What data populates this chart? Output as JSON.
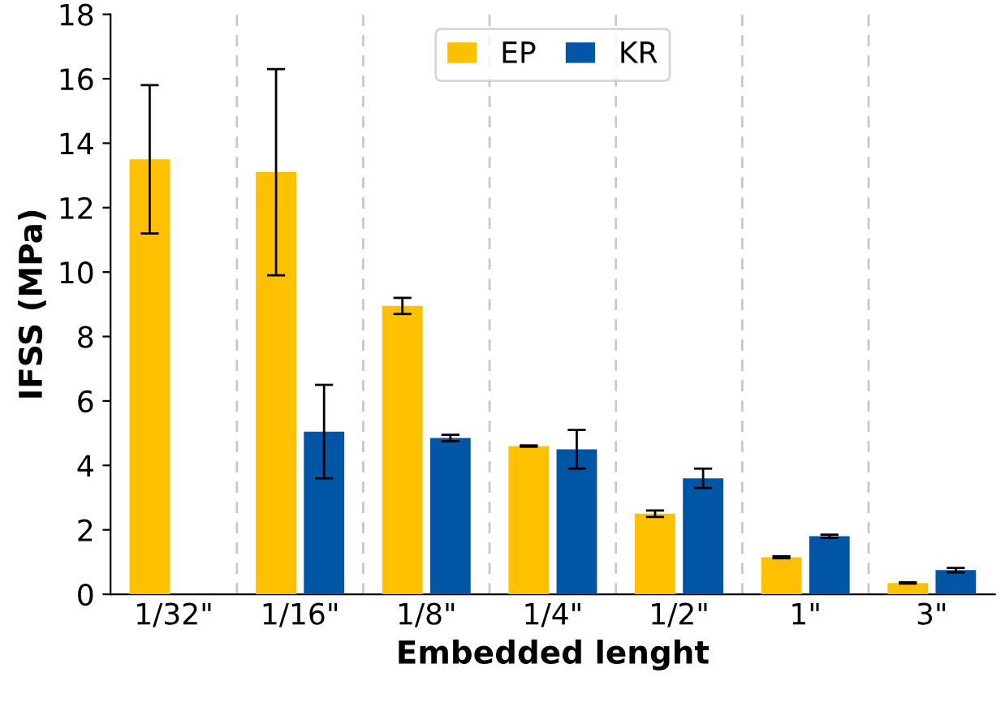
{
  "chart_data": {
    "type": "bar",
    "xlabel": "Embedded lenght",
    "ylabel": "IFSS (MPa)",
    "categories": [
      "1/32\"",
      "1/16\"",
      "1/8\"",
      "1/4\"",
      "1/2\"",
      "1\"",
      "3\""
    ],
    "series": [
      {
        "name": "EP",
        "color": "#ffc000",
        "values": [
          13.5,
          13.1,
          8.95,
          4.6,
          2.5,
          1.15,
          0.35
        ],
        "errors": [
          [
            11.2,
            15.8
          ],
          [
            9.9,
            16.3
          ],
          [
            8.7,
            9.2
          ],
          [
            4.58,
            4.62
          ],
          [
            2.4,
            2.6
          ],
          [
            1.12,
            1.18
          ],
          [
            0.33,
            0.37
          ]
        ]
      },
      {
        "name": "KR",
        "color": "#0055a4",
        "values": [
          null,
          5.05,
          4.85,
          4.5,
          3.6,
          1.8,
          0.75
        ],
        "errors": [
          null,
          [
            3.6,
            6.5
          ],
          [
            4.75,
            4.95
          ],
          [
            3.9,
            5.1
          ],
          [
            3.3,
            3.9
          ],
          [
            1.75,
            1.85
          ],
          [
            0.68,
            0.82
          ]
        ]
      }
    ],
    "ylim": [
      0,
      18
    ],
    "yticks": [
      0,
      2,
      4,
      6,
      8,
      10,
      12,
      14,
      16,
      18
    ],
    "grid": "x",
    "legend": "top"
  }
}
